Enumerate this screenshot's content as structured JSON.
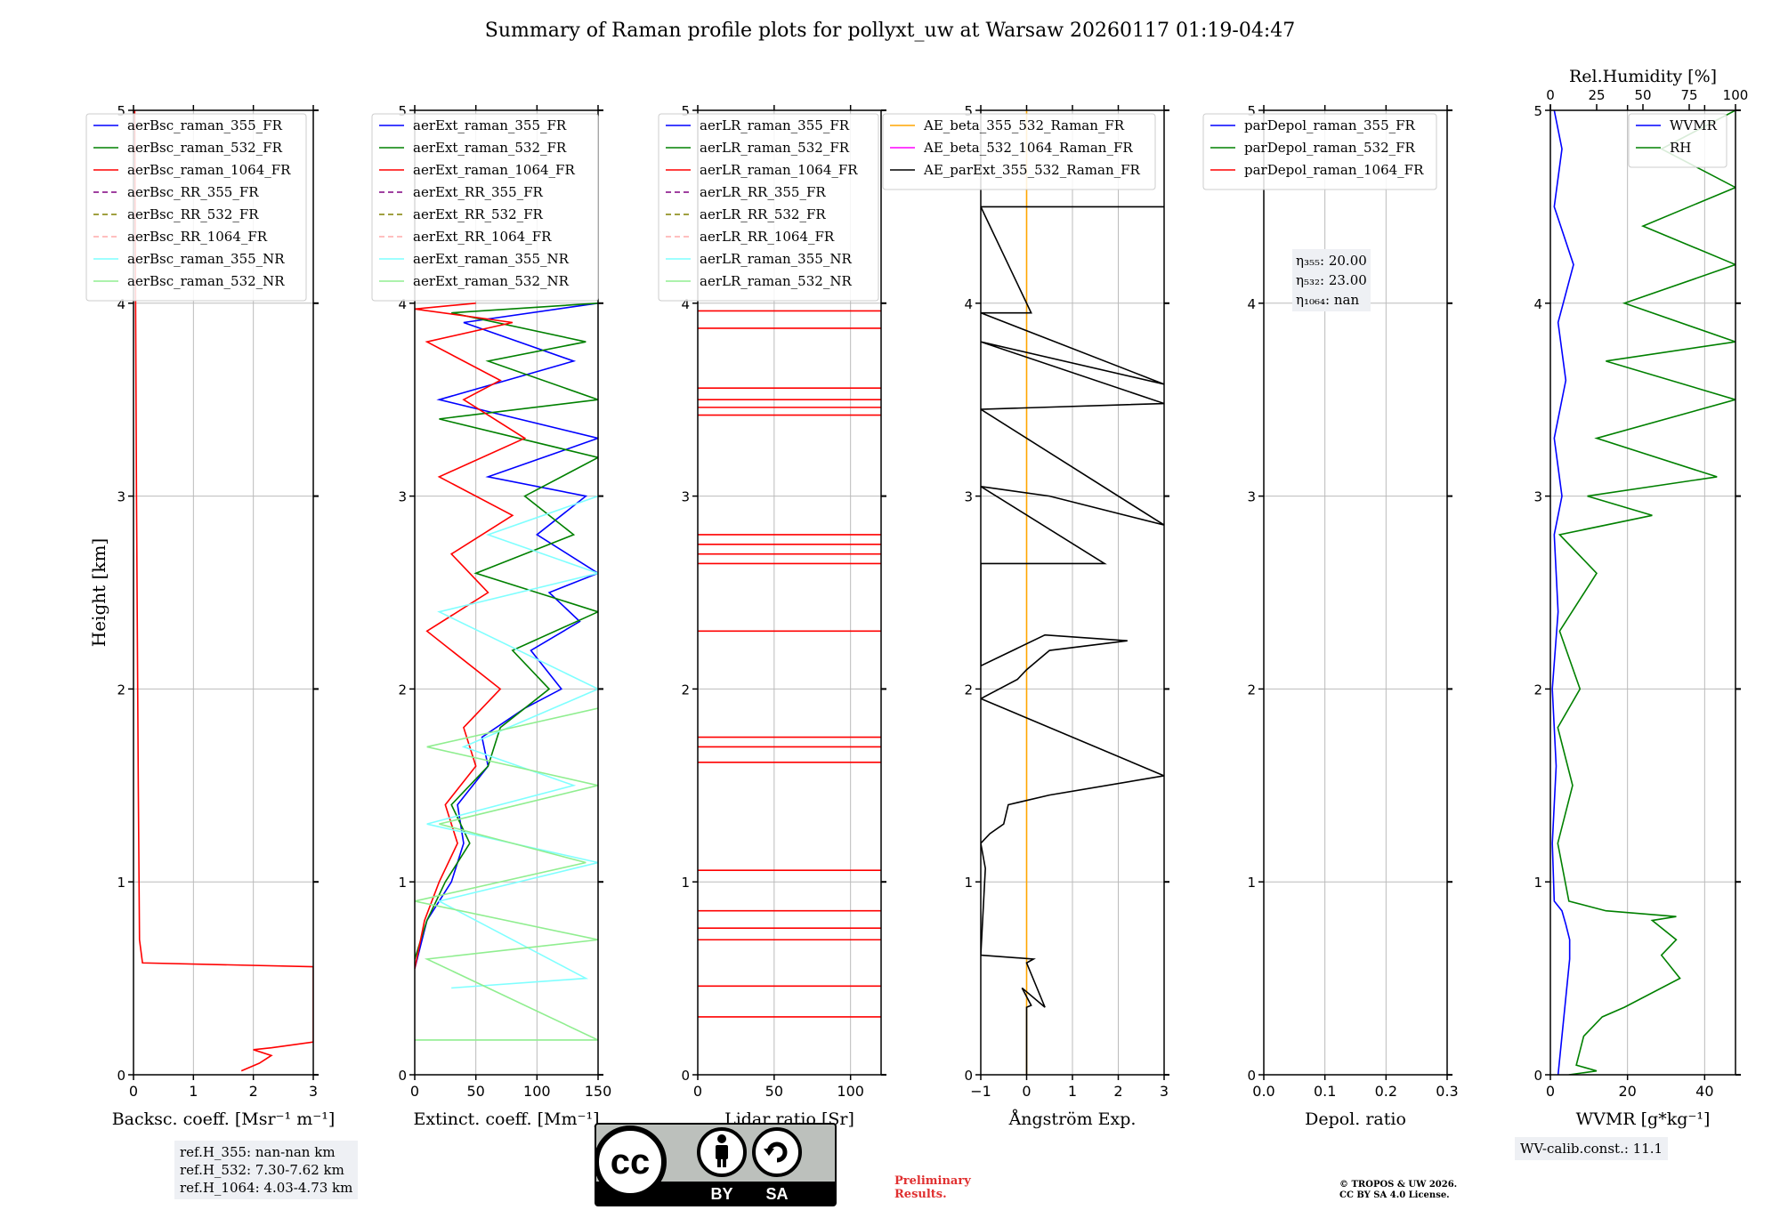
{
  "title": "Summary of Raman profile plots for pollyxt_uw at Warsaw 20260117 01:19-04:47",
  "chart_data": [
    {
      "type": "line",
      "xlabel": "Backsc. coeff. [Msr⁻¹ m⁻¹]",
      "ylabel": "Height [km]",
      "xlim": [
        0,
        3
      ],
      "ylim": [
        0,
        5
      ],
      "xticks": [
        "0",
        "1",
        "2",
        "3"
      ],
      "yticks": [
        "0",
        "1",
        "2",
        "3",
        "4",
        "5"
      ],
      "legend": [
        "aerBsc_raman_355_FR",
        "aerBsc_raman_532_FR",
        "aerBsc_raman_1064_FR",
        "aerBsc_RR_355_FR",
        "aerBsc_RR_532_FR",
        "aerBsc_RR_1064_FR",
        "aerBsc_raman_355_NR",
        "aerBsc_raman_532_NR"
      ],
      "series": [
        {
          "name": "aerBsc_raman_1064_FR",
          "color": "#ff0000",
          "x": [
            1.8,
            2.1,
            2.3,
            2.0,
            2.3,
            3.0,
            3.0,
            0.15,
            0.1,
            0.08,
            0.05,
            0.02
          ],
          "y": [
            0.02,
            0.06,
            0.1,
            0.13,
            0.14,
            0.17,
            0.56,
            0.58,
            0.7,
            1.5,
            3.0,
            5.0
          ]
        }
      ]
    },
    {
      "type": "line",
      "xlabel": "Extinct. coeff. [Mm⁻¹]",
      "xlim": [
        0,
        150
      ],
      "ylim": [
        0,
        5
      ],
      "xticks": [
        "0",
        "50",
        "100",
        "150"
      ],
      "yticks": [
        "0",
        "1",
        "2",
        "3",
        "4",
        "5"
      ],
      "legend": [
        "aerExt_raman_355_FR",
        "aerExt_raman_532_FR",
        "aerExt_raman_1064_FR",
        "aerExt_RR_355_FR",
        "aerExt_RR_532_FR",
        "aerExt_RR_1064_FR",
        "aerExt_raman_355_NR",
        "aerExt_raman_532_NR"
      ],
      "series": [
        {
          "name": "aerExt_raman_355_FR",
          "color": "#0000ff",
          "x": [
            0,
            10,
            30,
            40,
            35,
            60,
            55,
            90,
            120,
            95,
            135,
            110,
            150,
            100,
            140,
            60,
            150,
            20,
            130,
            40,
            150
          ],
          "y": [
            0.55,
            0.8,
            1.0,
            1.2,
            1.4,
            1.6,
            1.75,
            1.9,
            2.0,
            2.2,
            2.35,
            2.5,
            2.6,
            2.8,
            3.0,
            3.1,
            3.3,
            3.5,
            3.7,
            3.9,
            4.0
          ]
        },
        {
          "name": "aerExt_raman_532_FR",
          "color": "#008000",
          "x": [
            0,
            10,
            25,
            45,
            30,
            60,
            70,
            110,
            80,
            150,
            50,
            130,
            90,
            150,
            20,
            150,
            60,
            140,
            30,
            150
          ],
          "y": [
            0.6,
            0.8,
            1.0,
            1.2,
            1.4,
            1.6,
            1.8,
            2.0,
            2.2,
            2.4,
            2.6,
            2.8,
            3.0,
            3.2,
            3.4,
            3.5,
            3.7,
            3.8,
            3.95,
            4.0
          ]
        },
        {
          "name": "aerExt_raman_1064_FR",
          "color": "#ff0000",
          "x": [
            0,
            8,
            20,
            35,
            25,
            50,
            40,
            70,
            10,
            60,
            30,
            80,
            20,
            90,
            40,
            70,
            10,
            80,
            0,
            50
          ],
          "y": [
            0.55,
            0.8,
            1.0,
            1.2,
            1.4,
            1.6,
            1.8,
            2.0,
            2.3,
            2.5,
            2.7,
            2.9,
            3.1,
            3.3,
            3.5,
            3.6,
            3.8,
            3.9,
            3.97,
            4.0
          ]
        },
        {
          "name": "aerExt_raman_355_NR",
          "color": "#7fffff",
          "x": [
            30,
            140,
            20,
            150,
            10,
            130,
            40,
            150,
            20,
            150,
            60,
            150
          ],
          "y": [
            0.45,
            0.5,
            0.9,
            1.1,
            1.3,
            1.5,
            1.7,
            2.0,
            2.4,
            2.6,
            2.8,
            3.0
          ]
        },
        {
          "name": "aerExt_raman_532_NR",
          "color": "#90ee90",
          "x": [
            0,
            150,
            10,
            150,
            0,
            140,
            20,
            150,
            10,
            150
          ],
          "y": [
            0.18,
            0.18,
            0.6,
            0.7,
            0.9,
            1.1,
            1.3,
            1.5,
            1.7,
            1.9
          ]
        }
      ]
    },
    {
      "type": "line",
      "xlabel": "Lidar ratio [Sr]",
      "xlim": [
        0,
        120
      ],
      "ylim": [
        0,
        5
      ],
      "xticks": [
        "0",
        "50",
        "100"
      ],
      "yticks": [
        "0",
        "1",
        "2",
        "3",
        "4",
        "5"
      ],
      "legend": [
        "aerLR_raman_355_FR",
        "aerLR_raman_532_FR",
        "aerLR_raman_1064_FR",
        "aerLR_RR_355_FR",
        "aerLR_RR_532_FR",
        "aerLR_RR_1064_FR",
        "aerLR_raman_355_NR",
        "aerLR_raman_532_NR"
      ],
      "series": [
        {
          "name": "aerLR_raman_1064_FR",
          "color": "#ff0000",
          "h_lines": [
            0.3,
            0.46,
            0.7,
            0.76,
            0.85,
            1.06,
            1.62,
            1.7,
            1.75,
            2.3,
            2.65,
            2.7,
            2.75,
            2.8,
            3.42,
            3.46,
            3.5,
            3.56,
            3.87,
            3.96
          ]
        }
      ]
    },
    {
      "type": "line",
      "xlabel": "Ångström Exp.",
      "xlim": [
        -1,
        3
      ],
      "ylim": [
        0,
        5
      ],
      "xticks": [
        "−1",
        "0",
        "1",
        "2",
        "3"
      ],
      "yticks": [
        "0",
        "1",
        "2",
        "3",
        "4",
        "5"
      ],
      "legend": [
        "AE_beta_355_532_Raman_FR",
        "AE_beta_532_1064_Raman_FR",
        "AE_parExt_355_532_Raman_FR"
      ],
      "series": [
        {
          "name": "AE_beta_355_532_Raman_FR",
          "color": "#ffa500",
          "vline_x": 0
        },
        {
          "name": "AE_parExt_355_532_Raman_FR",
          "color": "#000000",
          "x": [
            0,
            0,
            0.1,
            -0.1,
            0.4,
            0,
            0.15,
            -1,
            -0.9,
            -1,
            -0.8,
            -0.5,
            -0.4,
            0.5,
            3.0,
            -1,
            -0.2,
            0,
            0.5,
            2.2,
            0.4,
            -1,
            -1,
            1.7,
            -1,
            0.5,
            3,
            -1,
            3,
            -1,
            3,
            -1,
            0.1,
            -1,
            3
          ],
          "y": [
            0,
            0.35,
            0.36,
            0.45,
            0.35,
            0.58,
            0.6,
            0.62,
            1.07,
            1.2,
            1.25,
            1.3,
            1.4,
            1.45,
            1.55,
            1.95,
            2.05,
            2.1,
            2.2,
            2.25,
            2.28,
            2.12,
            2.65,
            2.65,
            3.05,
            3.0,
            2.85,
            3.45,
            3.48,
            3.8,
            3.58,
            3.95,
            3.95,
            4.5,
            4.5
          ]
        }
      ]
    },
    {
      "type": "line",
      "xlabel": "Depol. ratio",
      "xlim": [
        0,
        0.3
      ],
      "ylim": [
        0,
        5
      ],
      "xticks": [
        "0.0",
        "0.1",
        "0.2",
        "0.3"
      ],
      "yticks": [
        "0",
        "1",
        "2",
        "3",
        "4",
        "5"
      ],
      "legend": [
        "parDepol_raman_355_FR",
        "parDepol_raman_532_FR",
        "parDepol_raman_1064_FR"
      ],
      "annotations": [
        "η₃₅₅: 20.00",
        "η₅₃₂: 23.00",
        "η₁₀₆₄: nan"
      ],
      "series": []
    },
    {
      "type": "line",
      "xlabel": "WVMR [g*kg⁻¹]",
      "x2label": "Rel.Humidity [%]",
      "xlim": [
        0,
        48
      ],
      "x2lim": [
        0,
        100
      ],
      "ylim": [
        0,
        5
      ],
      "xticks": [
        "0",
        "20",
        "40"
      ],
      "x2ticks": [
        "0",
        "25",
        "50",
        "75",
        "100"
      ],
      "yticks": [
        "0",
        "1",
        "2",
        "3",
        "4",
        "5"
      ],
      "legend": [
        "WVMR",
        "RH"
      ],
      "annotations": [
        "WV-calib.const.: 11.1"
      ],
      "series": [
        {
          "name": "WVMR",
          "color": "#0000ff",
          "x": [
            2,
            3,
            4,
            5,
            5,
            4,
            3,
            1,
            0.5,
            1.5,
            0.5,
            2,
            1,
            3,
            1,
            4,
            2,
            6,
            1,
            3,
            1
          ],
          "y": [
            0,
            0.2,
            0.4,
            0.6,
            0.7,
            0.78,
            0.85,
            0.9,
            1.2,
            1.6,
            2.0,
            2.4,
            2.8,
            3.0,
            3.3,
            3.6,
            3.9,
            4.2,
            4.5,
            4.8,
            5.0
          ]
        },
        {
          "name": "RH",
          "color": "#008000",
          "x": [
            10,
            25,
            14,
            18,
            28,
            40,
            70,
            60,
            68,
            55,
            68,
            30,
            10,
            4,
            12,
            4,
            16,
            5,
            25,
            5,
            55,
            20,
            90,
            25,
            100,
            30,
            100,
            40,
            100,
            50,
            100,
            60,
            100
          ],
          "y": [
            0,
            0.02,
            0.05,
            0.2,
            0.3,
            0.35,
            0.5,
            0.62,
            0.7,
            0.8,
            0.82,
            0.85,
            0.9,
            1.2,
            1.5,
            1.8,
            2.0,
            2.3,
            2.6,
            2.8,
            2.9,
            3.0,
            3.1,
            3.3,
            3.5,
            3.7,
            3.8,
            4.0,
            4.2,
            4.4,
            4.6,
            4.8,
            5.0
          ]
        }
      ]
    }
  ],
  "footer": {
    "ref_lines": [
      "ref.H_355: nan-nan km",
      "ref.H_532: 7.30-7.62 km",
      "ref.H_1064: 4.03-4.73 km"
    ],
    "cc_label_by": "BY",
    "cc_label_sa": "SA",
    "cc_mark": "cc",
    "preliminary": "Preliminary Results.",
    "copyright_lines": [
      "© TROPOS & UW 2026.",
      "CC BY SA 4.0 License."
    ]
  },
  "colors": {
    "blue": "#0000ff",
    "green": "#008000",
    "red": "#ff0000",
    "orange": "#ffa500",
    "grid": "#bbbbbb",
    "info_bg": "#eef0f4"
  }
}
